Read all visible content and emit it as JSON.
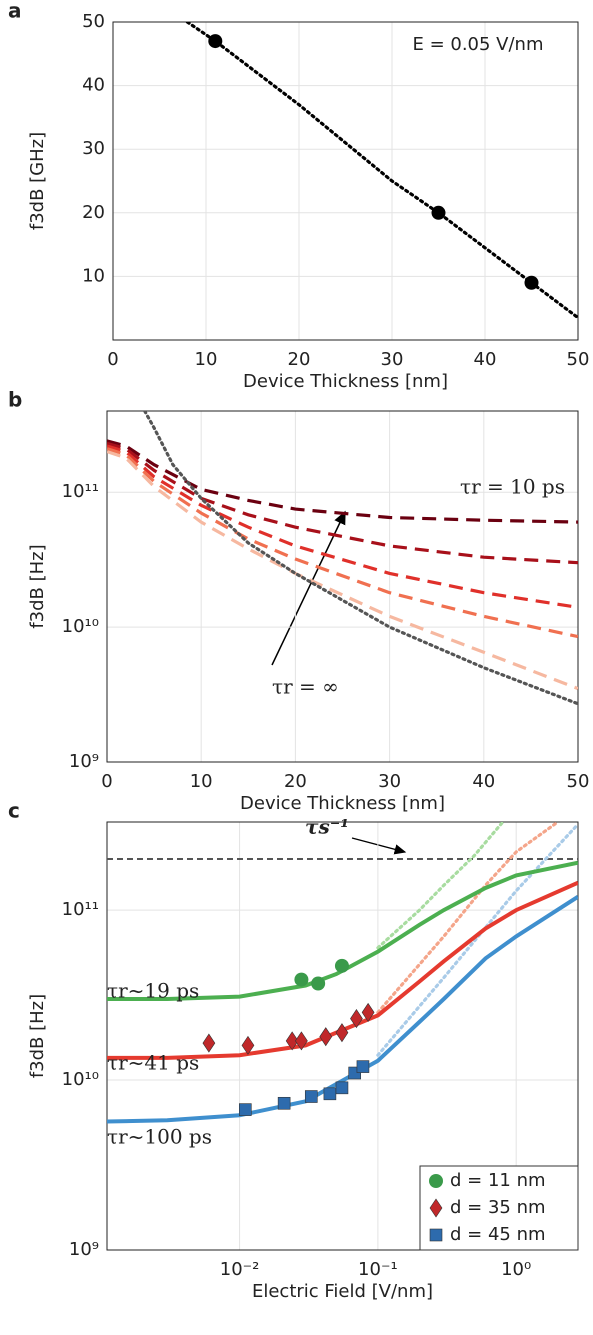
{
  "chart_data": [
    {
      "type": "line",
      "panel_label": "a",
      "xlabel": "Device Thickness [nm]",
      "ylabel": "f3dB [GHz]",
      "annotations": [
        "E = 0.05 V/nm"
      ],
      "xlim": [
        0,
        50
      ],
      "ylim": [
        0,
        50
      ],
      "xticks": [
        0,
        10,
        20,
        30,
        40,
        50
      ],
      "yticks": [
        10,
        20,
        30,
        40,
        50
      ],
      "grid": true,
      "series": [
        {
          "color": "#000000",
          "style": "dotted",
          "x": [
            8,
            11,
            20,
            30,
            35,
            40,
            45,
            50
          ],
          "values": [
            50,
            47,
            37,
            25,
            20,
            14.5,
            9,
            3.5
          ]
        },
        {
          "color": "#000000",
          "style": "markers",
          "marker": "circle",
          "x": [
            11,
            35,
            45
          ],
          "values": [
            47,
            20,
            9
          ]
        }
      ]
    },
    {
      "type": "line",
      "panel_label": "b",
      "xlabel": "Device Thickness [nm]",
      "ylabel": "f3dB [Hz]",
      "annotations": [
        "τr = 10 ps",
        "τr = ∞"
      ],
      "xlim": [
        0,
        50
      ],
      "ylim": [
        1000000000,
        400000000000
      ],
      "yscale": "log",
      "xticks": [
        0,
        10,
        20,
        30,
        40,
        50
      ],
      "yticks": [
        {
          "value": 1000000000,
          "label": "10⁹"
        },
        {
          "value": 10000000000,
          "label": "10¹⁰"
        },
        {
          "value": 100000000000,
          "label": "10¹¹"
        }
      ],
      "grid": true,
      "series": [
        {
          "color": "#6b0010",
          "style": "dashed",
          "x": [
            0,
            2,
            5,
            10,
            15,
            20,
            30,
            40,
            50
          ],
          "values": [
            240000000000,
            220000000000,
            160000000000,
            105000000000,
            87000000000,
            75000000000,
            65000000000,
            62000000000,
            60000000000
          ]
        },
        {
          "color": "#a8101a",
          "style": "dashed",
          "x": [
            0,
            2,
            5,
            10,
            15,
            20,
            30,
            40,
            50
          ],
          "values": [
            230000000000,
            210000000000,
            145000000000,
            90000000000,
            68000000000,
            55000000000,
            40000000000,
            33000000000,
            30000000000
          ]
        },
        {
          "color": "#e0302a",
          "style": "dashed",
          "x": [
            0,
            2,
            5,
            10,
            15,
            20,
            30,
            40,
            50
          ],
          "values": [
            220000000000,
            200000000000,
            130000000000,
            80000000000,
            55000000000,
            40000000000,
            25000000000,
            18000000000,
            14000000000
          ]
        },
        {
          "color": "#f07050",
          "style": "dashed",
          "x": [
            0,
            2,
            5,
            10,
            15,
            20,
            30,
            40,
            50
          ],
          "values": [
            210000000000,
            190000000000,
            120000000000,
            70000000000,
            45000000000,
            32000000000,
            18000000000,
            12000000000,
            8500000000
          ]
        },
        {
          "color": "#f6b8a0",
          "style": "dashed",
          "x": [
            0,
            2,
            5,
            10,
            15,
            20,
            30,
            40,
            50
          ],
          "values": [
            200000000000,
            180000000000,
            110000000000,
            60000000000,
            38000000000,
            25000000000,
            12000000000,
            6500000000,
            3500000000
          ]
        },
        {
          "color": "#555555",
          "style": "dotted",
          "x": [
            4,
            5,
            7,
            10,
            15,
            20,
            30,
            40,
            50
          ],
          "values": [
            400000000000,
            300000000000,
            160000000000,
            90000000000,
            42000000000,
            25000000000,
            10000000000,
            5000000000,
            2700000000
          ]
        }
      ]
    },
    {
      "type": "line",
      "panel_label": "c",
      "xlabel": "Electric Field [V/nm]",
      "ylabel": "f3dB [Hz]",
      "annotations": [
        "τr~19 ps",
        "τr~41 ps",
        "τr~100 ps"
      ],
      "xlim": [
        0.0011,
        2.8
      ],
      "ylim": [
        1000000000,
        330000000000
      ],
      "xscale": "log",
      "yscale": "log",
      "xticks": [
        {
          "value": 0.01,
          "label": "10⁻²"
        },
        {
          "value": 0.1,
          "label": "10⁻¹"
        },
        {
          "value": 1,
          "label": "10⁰"
        }
      ],
      "yticks": [
        {
          "value": 1000000000,
          "label": "10⁹"
        },
        {
          "value": 10000000000,
          "label": "10¹⁰"
        },
        {
          "value": 100000000000,
          "label": "10¹¹"
        }
      ],
      "grid": true,
      "reference_lines": [
        {
          "value": 200000000000,
          "label": "τs⁻¹",
          "color": "#555555"
        }
      ],
      "legend": "lower right",
      "series": [
        {
          "color": "#a8dca0",
          "style": "dotted",
          "x": [
            0.1,
            0.2,
            0.3,
            0.5,
            0.8
          ],
          "values": [
            60000000000,
            100000000000,
            140000000000,
            210000000000,
            330000000000
          ]
        },
        {
          "color": "#f4a58a",
          "style": "dotted",
          "x": [
            0.1,
            0.3,
            0.6,
            1,
            2
          ],
          "values": [
            25000000000,
            70000000000,
            140000000000,
            220000000000,
            330000000000
          ]
        },
        {
          "color": "#a9cbe8",
          "style": "dotted",
          "x": [
            0.1,
            0.3,
            1,
            2.8
          ],
          "values": [
            14000000000,
            40000000000,
            130000000000,
            320000000000
          ]
        },
        {
          "color": "#4caf50",
          "style": "solid",
          "x": [
            0.0011,
            0.003,
            0.01,
            0.03,
            0.05,
            0.1,
            0.2,
            0.3,
            0.6,
            1,
            2.8
          ],
          "values": [
            30000000000,
            30000000000,
            31000000000,
            36000000000,
            42000000000,
            57000000000,
            82000000000,
            100000000000,
            135000000000,
            160000000000,
            190000000000
          ]
        },
        {
          "color": "#e53a2f",
          "style": "solid",
          "x": [
            0.0011,
            0.003,
            0.01,
            0.03,
            0.1,
            0.2,
            0.3,
            0.6,
            1,
            2.8
          ],
          "values": [
            13500000000,
            13500000000,
            14000000000,
            16000000000,
            24000000000,
            38000000000,
            50000000000,
            78000000000,
            100000000000,
            145000000000
          ]
        },
        {
          "color": "#3f8fce",
          "style": "solid",
          "x": [
            0.0011,
            0.003,
            0.01,
            0.03,
            0.1,
            0.2,
            0.3,
            0.6,
            1,
            2.8
          ],
          "values": [
            5700000000,
            5800000000,
            6200000000,
            7500000000,
            13000000000,
            22000000000,
            30000000000,
            52000000000,
            70000000000,
            120000000000
          ]
        },
        {
          "name": "d = 11 nm",
          "color": "#3a9a4a",
          "style": "markers",
          "marker": "circle",
          "x": [
            0.028,
            0.037,
            0.055
          ],
          "values": [
            39000000000,
            37000000000,
            47000000000
          ]
        },
        {
          "name": "d = 35 nm",
          "color": "#c0282a",
          "style": "markers",
          "marker": "diamond",
          "x": [
            0.006,
            0.0115,
            0.024,
            0.028,
            0.042,
            0.055,
            0.07,
            0.085
          ],
          "values": [
            16500000000,
            16000000000,
            17000000000,
            17000000000,
            18000000000,
            19000000000,
            23000000000,
            25000000000
          ]
        },
        {
          "name": "d = 45 nm",
          "color": "#2d6bad",
          "style": "markers",
          "marker": "square",
          "x": [
            0.011,
            0.021,
            0.033,
            0.045,
            0.055,
            0.068,
            0.078
          ],
          "values": [
            6700000000,
            7300000000,
            8000000000,
            8300000000,
            9000000000,
            11000000000,
            12000000000
          ]
        }
      ]
    }
  ]
}
